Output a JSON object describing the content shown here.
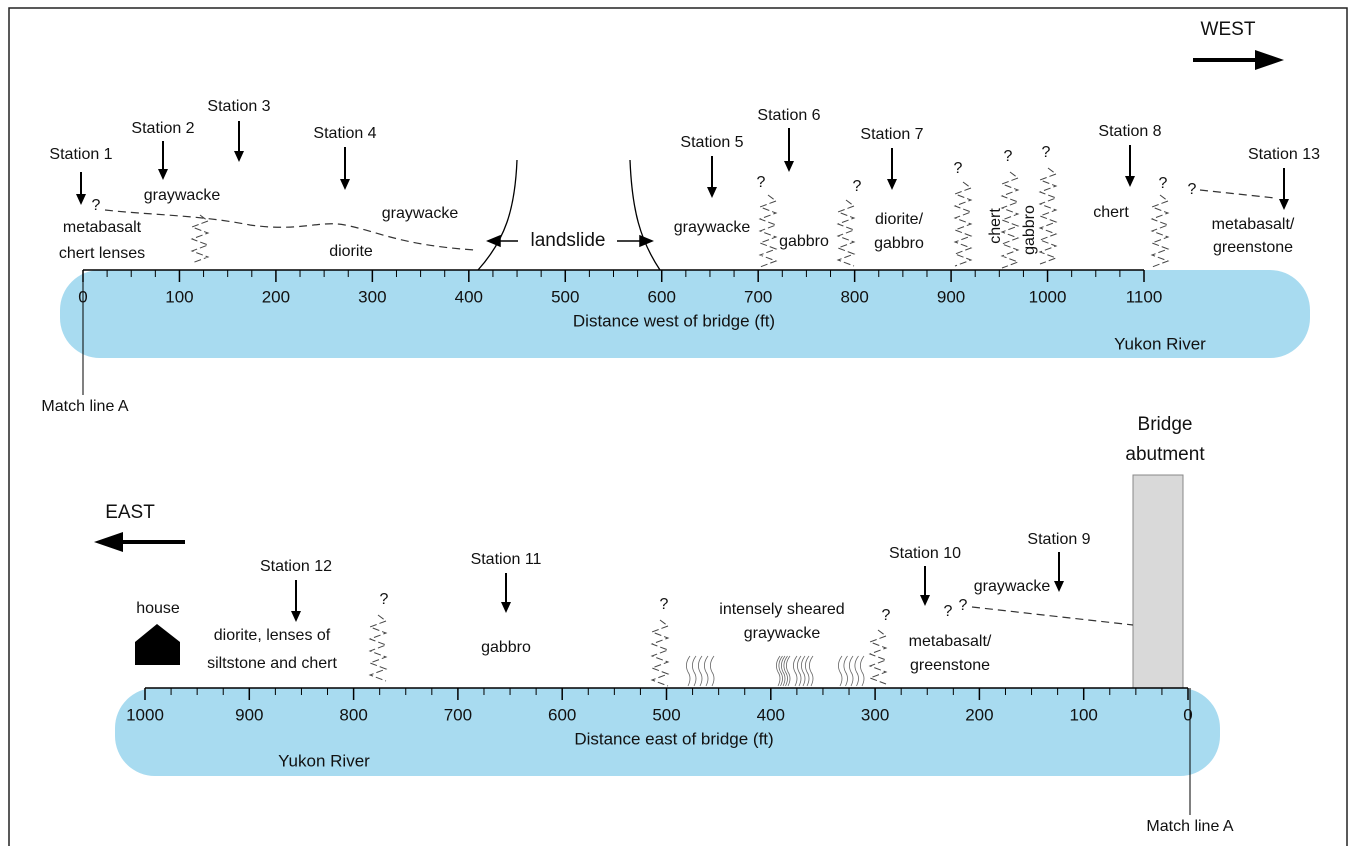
{
  "query_mark": "?",
  "top": {
    "direction": "WEST",
    "stations": [
      "Station 1",
      "Station 2",
      "Station 3",
      "Station 4",
      "Station 5",
      "Station 6",
      "Station 7",
      "Station 8",
      "Station 13"
    ],
    "rocks": [
      "metabasalt",
      "chert lenses",
      "graywacke",
      "graywacke",
      "diorite",
      "graywacke",
      "gabbro",
      "diorite/",
      "gabbro",
      "chert",
      "gabbro",
      "chert",
      "metabasalt/",
      "greenstone"
    ],
    "landslide": "landslide",
    "ticks": [
      0,
      100,
      200,
      300,
      400,
      500,
      600,
      700,
      800,
      900,
      1000,
      1100
    ],
    "axis_label": "Distance west of bridge (ft)",
    "river": "Yukon River",
    "match_line": "Match line A"
  },
  "bottom": {
    "direction": "EAST",
    "stations": [
      "Station 12",
      "Station 11",
      "Station 10",
      "Station 9"
    ],
    "rocks": [
      "diorite, lenses of",
      "siltstone and chert",
      "gabbro",
      "intensely sheared",
      "graywacke",
      "metabasalt/",
      "greenstone",
      "graywacke"
    ],
    "house": "house",
    "bridge_abutment": [
      "Bridge",
      "abutment"
    ],
    "ticks": [
      1000,
      900,
      800,
      700,
      600,
      500,
      400,
      300,
      200,
      100,
      0
    ],
    "axis_label": "Distance east of bridge (ft)",
    "river": "Yukon River",
    "match_line": "Match line A"
  }
}
